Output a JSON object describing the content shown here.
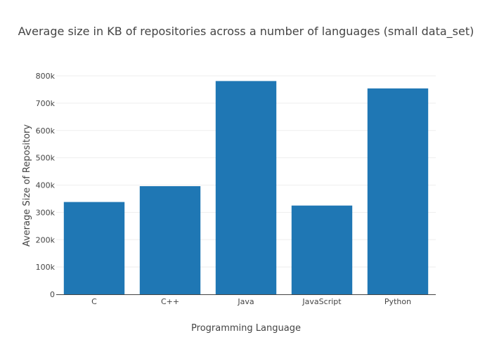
{
  "chart_data": {
    "type": "bar",
    "title": "Average size in KB of repositories across a number of languages (small data_set)",
    "xlabel": "Programming Language",
    "ylabel": "Average Size of Repository",
    "categories": [
      "C",
      "C++",
      "Java",
      "JavaScript",
      "Python"
    ],
    "values": [
      338000,
      396000,
      781000,
      325000,
      754000
    ],
    "ylim": [
      0,
      800000
    ],
    "yticks": [
      0,
      100000,
      200000,
      300000,
      400000,
      500000,
      600000,
      700000,
      800000
    ],
    "ytick_labels": [
      "0",
      "100k",
      "200k",
      "300k",
      "400k",
      "500k",
      "600k",
      "700k",
      "800k"
    ],
    "grid": true,
    "bar_color": "#1f77b4"
  }
}
